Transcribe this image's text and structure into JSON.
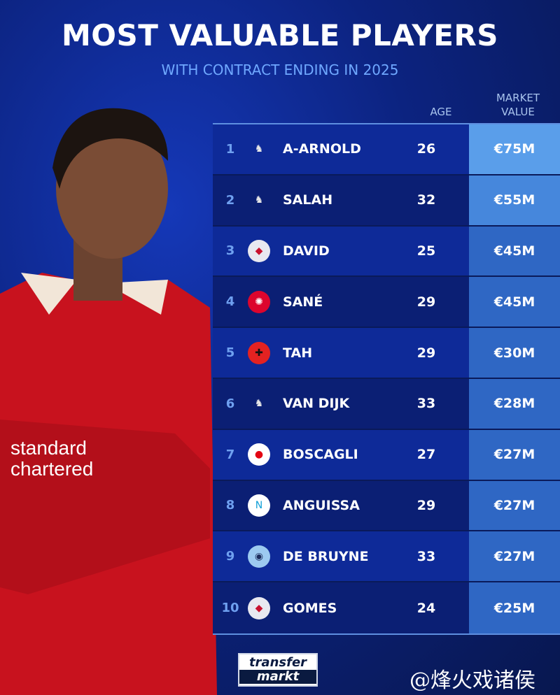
{
  "header": {
    "title": "MOST VALUABLE PLAYERS",
    "subtitle": "WITH CONTRACT ENDING IN 2025"
  },
  "columns": {
    "age": "AGE",
    "market_value_line1": "MARKET",
    "market_value_line2": "VALUE"
  },
  "rows": [
    {
      "rank": "1",
      "club": "liverpool-crest",
      "name": "A-ARNOLD",
      "age": "26",
      "value": "€75M"
    },
    {
      "rank": "2",
      "club": "liverpool-crest",
      "name": "SALAH",
      "age": "32",
      "value": "€55M"
    },
    {
      "rank": "3",
      "club": "lille-crest",
      "name": "DAVID",
      "age": "25",
      "value": "€45M"
    },
    {
      "rank": "4",
      "club": "bayern-crest",
      "name": "SANÉ",
      "age": "29",
      "value": "€45M"
    },
    {
      "rank": "5",
      "club": "leverkusen-crest",
      "name": "TAH",
      "age": "29",
      "value": "€30M"
    },
    {
      "rank": "6",
      "club": "liverpool-crest",
      "name": "VAN DIJK",
      "age": "33",
      "value": "€28M"
    },
    {
      "rank": "7",
      "club": "psv-crest",
      "name": "BOSCAGLI",
      "age": "27",
      "value": "€27M"
    },
    {
      "rank": "8",
      "club": "napoli-crest",
      "name": "ANGUISSA",
      "age": "29",
      "value": "€27M"
    },
    {
      "rank": "9",
      "club": "man-city-crest",
      "name": "DE BRUYNE",
      "age": "33",
      "value": "€27M"
    },
    {
      "rank": "10",
      "club": "lille-crest",
      "name": "GOMES",
      "age": "24",
      "value": "€25M"
    }
  ],
  "footer": {
    "logo_line1": "transfer",
    "logo_line2": "markt",
    "watermark": "@烽火戏诸侯"
  },
  "colors": {
    "value_top": "#5a9eea",
    "value_second": "#4687dc",
    "value_rest": "#2f67c4",
    "accent": "#6fa8ff"
  }
}
